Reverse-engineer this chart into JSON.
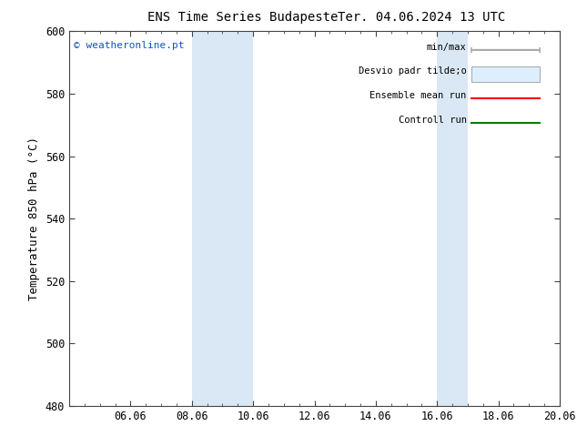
{
  "title_left": "ENS Time Series Budapeste",
  "title_right": "Ter. 04.06.2024 13 UTC",
  "ylabel": "Temperature 850 hPa (°C)",
  "watermark": "© weatheronline.pt",
  "ylim": [
    480,
    600
  ],
  "yticks": [
    480,
    500,
    520,
    540,
    560,
    580,
    600
  ],
  "xtick_labels": [
    "06.06",
    "08.06",
    "10.06",
    "12.06",
    "14.06",
    "16.06",
    "18.06",
    "20.06"
  ],
  "xtick_positions": [
    2,
    4,
    6,
    8,
    10,
    12,
    14,
    16
  ],
  "x_min": 0,
  "x_max": 16,
  "shaded_bands": [
    {
      "x_start": 4,
      "x_end": 6
    },
    {
      "x_start": 12,
      "x_end": 13
    }
  ],
  "background_color": "#ffffff",
  "shaded_color": "#dae8f5",
  "legend_labels": [
    "min/max",
    "Desvio padr tilde;o",
    "Ensemble mean run",
    "Controll run"
  ],
  "legend_colors": [
    "#aaaaaa",
    "#ddeeff",
    "red",
    "green"
  ],
  "grid_color": "#cccccc",
  "spine_color": "#444444",
  "tick_font_size": 8.5,
  "label_font_size": 9,
  "title_font_size": 10,
  "watermark_color": "#1155bb"
}
